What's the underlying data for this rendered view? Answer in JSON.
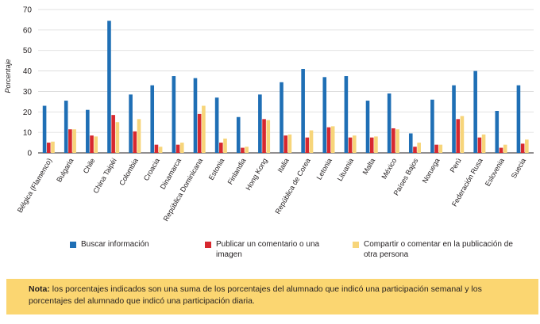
{
  "chart_data": {
    "type": "bar",
    "ylabel": "Porcentaje",
    "ylim": [
      0,
      70
    ],
    "yticks": [
      0,
      10,
      20,
      30,
      40,
      50,
      60,
      70
    ],
    "grid": true,
    "categories": [
      "Bélgica (Flamenco)",
      "Bulgaria",
      "Chile",
      "China Taipéi",
      "Colombia",
      "Croacia",
      "Dinamarca",
      "República Dominicana",
      "Estonia",
      "Finlandia",
      "Hong Kong",
      "Italia",
      "República de Corea",
      "Letonia",
      "Lituania",
      "Malta",
      "México",
      "Países Bajos",
      "Noruega",
      "Perú",
      "Federación Rusa",
      "Eslovenia",
      "Suecia"
    ],
    "series": [
      {
        "name": "Buscar información",
        "color": "#1f6fb5",
        "values": [
          23,
          25.5,
          21,
          64.5,
          28.5,
          33,
          37.5,
          36.5,
          27,
          17.5,
          28.5,
          34.5,
          41,
          37,
          37.5,
          25.5,
          29,
          9.5,
          26,
          33,
          40,
          20.5,
          33
        ]
      },
      {
        "name": "Publicar un comentario o una imagen",
        "color": "#d7282f",
        "values": [
          5,
          11.5,
          8.5,
          18.5,
          10.5,
          4,
          4,
          19,
          5,
          2.5,
          16.5,
          8.5,
          7.5,
          12.5,
          7.5,
          7.5,
          12,
          3,
          4,
          16.5,
          7.5,
          2.5,
          4.5
        ]
      },
      {
        "name": "Compartir o comentar en la publicación de otra persona",
        "color": "#f7d57a",
        "values": [
          5.5,
          11.5,
          8,
          15,
          16.5,
          3,
          5,
          23,
          7,
          3,
          16,
          9,
          11,
          13,
          8.5,
          8,
          11.5,
          5,
          4,
          18,
          9,
          4,
          6.5
        ]
      }
    ]
  },
  "legend": [
    {
      "label": "Buscar información",
      "color": "#1f6fb5"
    },
    {
      "label": "Publicar un comentario o una imagen",
      "color": "#d7282f"
    },
    {
      "label": "Compartir o comentar en la publicación de otra persona",
      "color": "#f7d57a"
    }
  ],
  "note": {
    "bold": "Nota:",
    "text": "los porcentajes indicados son una suma de los porcentajes del alumnado que indicó una participación semanal y los porcentajes del alumnado que indicó una participación diaria."
  }
}
